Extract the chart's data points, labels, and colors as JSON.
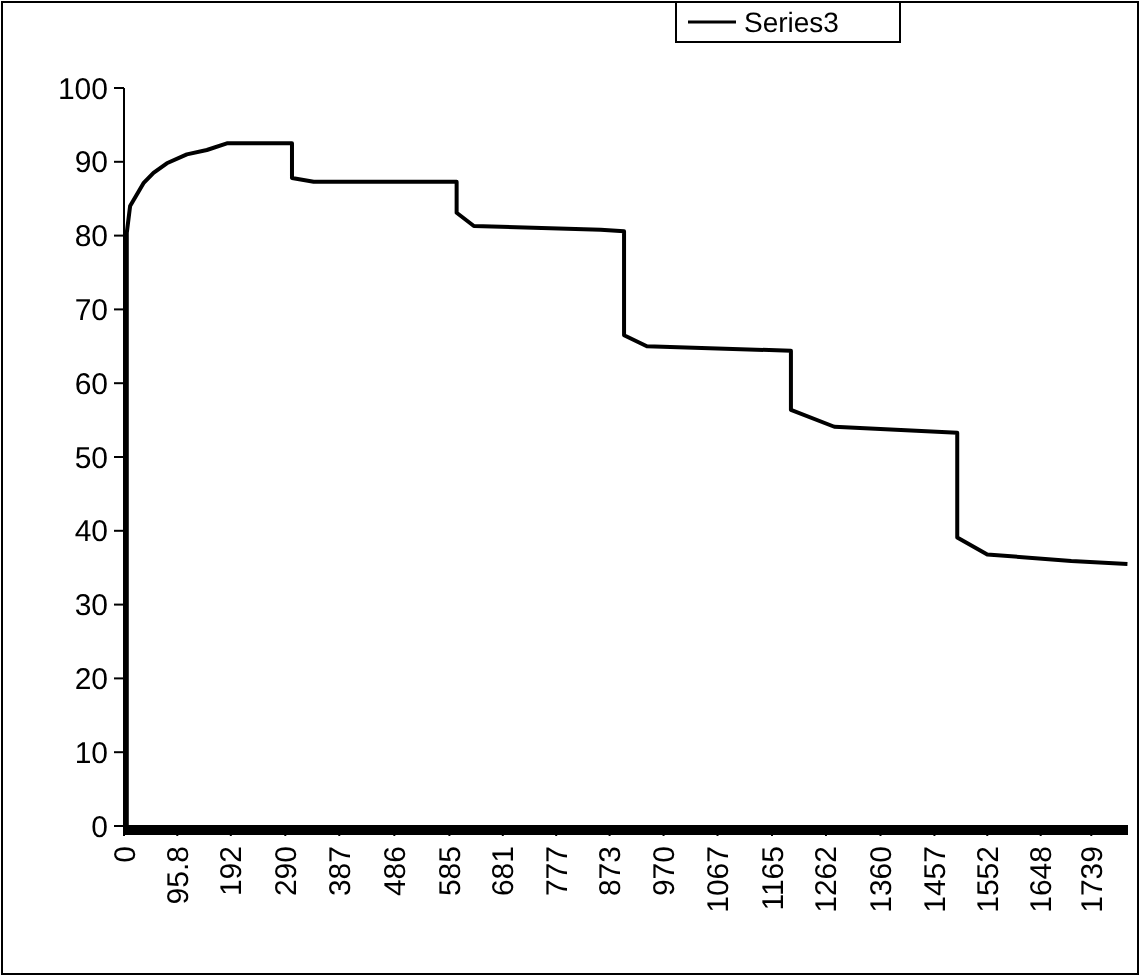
{
  "chart_data": {
    "type": "line",
    "legend": "top right",
    "grid": false,
    "line_style": "solid",
    "xlim": [
      0,
      1805
    ],
    "ylim": [
      0,
      100
    ],
    "xticks": [
      0,
      {
        "value": 95.8,
        "label": "95.8"
      },
      192,
      290,
      387,
      486,
      585,
      681,
      777,
      873,
      970,
      1067,
      1165,
      1262,
      1360,
      1457,
      1552,
      1648,
      1739
    ],
    "yticks": [
      0,
      10,
      20,
      30,
      40,
      50,
      60,
      70,
      80,
      90,
      100
    ],
    "series": [
      {
        "name": "Series3",
        "color": "#000000",
        "x": [
          5,
          5,
          11,
          35,
          53,
          77,
          113,
          149,
          185,
          302,
          302,
          341,
          598,
          598,
          629,
          857,
          899,
          899,
          940,
          1199,
          1199,
          1277,
          1498,
          1498,
          1552,
          1703,
          1804
        ],
        "values": [
          0,
          80.4,
          84,
          87.1,
          88.5,
          89.8,
          91,
          91.6,
          92.5,
          92.5,
          87.8,
          87.3,
          87.3,
          83.1,
          81.3,
          80.8,
          80.6,
          66.5,
          65,
          64.4,
          56.4,
          54.1,
          53.3,
          39.1,
          36.8,
          35.9,
          35.5
        ]
      }
    ]
  }
}
